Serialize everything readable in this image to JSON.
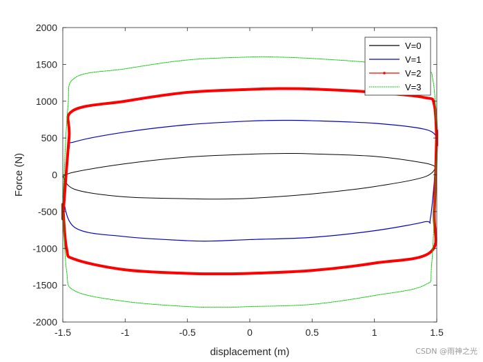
{
  "chart_data": {
    "type": "line",
    "title": "",
    "xlabel": "displacement  (m)",
    "ylabel": "Force  (N)",
    "xlim": [
      -1.5,
      1.5
    ],
    "ylim": [
      -2000,
      2000
    ],
    "xticks": [
      -1.5,
      -1,
      -0.5,
      0,
      0.5,
      1,
      1.5
    ],
    "yticks": [
      -2000,
      -1500,
      -1000,
      -500,
      0,
      500,
      1000,
      1500,
      2000
    ],
    "xtick_labels": [
      "-1.5",
      "-1",
      "-0.5",
      "0",
      "0.5",
      "1",
      "1.5"
    ],
    "ytick_labels": [
      "-2000",
      "-1500",
      "-1000",
      "-500",
      "0",
      "500",
      "1000",
      "1500",
      "2000"
    ],
    "grid": false,
    "legend_position": "top-right",
    "series": [
      {
        "name": "V=0",
        "color": "#000000",
        "upper": {
          "x": [
            -1.5,
            -1.4,
            -1.0,
            -0.5,
            0.0,
            0.3,
            0.5,
            1.0,
            1.4,
            1.5
          ],
          "y": [
            -20,
            40,
            150,
            240,
            280,
            290,
            285,
            250,
            160,
            100
          ]
        },
        "lower": {
          "x": [
            1.5,
            1.4,
            1.0,
            0.5,
            0.0,
            -0.3,
            -0.5,
            -1.0,
            -1.4,
            -1.5
          ],
          "y": [
            120,
            -30,
            -160,
            -260,
            -320,
            -330,
            -325,
            -300,
            -200,
            -20
          ]
        }
      },
      {
        "name": "V=1",
        "color": "#0000c0",
        "upper": {
          "x": [
            -1.5,
            -1.45,
            -1.4,
            -1.0,
            -0.5,
            0.0,
            0.3,
            0.5,
            1.0,
            1.4,
            1.5
          ],
          "y": [
            -300,
            350,
            450,
            580,
            680,
            730,
            740,
            735,
            700,
            620,
            520
          ]
        },
        "lower": {
          "x": [
            1.5,
            1.45,
            1.4,
            1.0,
            0.5,
            0.0,
            -0.3,
            -0.5,
            -1.0,
            -1.4,
            -1.5
          ],
          "y": [
            300,
            -580,
            -640,
            -760,
            -850,
            -880,
            -900,
            -895,
            -840,
            -720,
            -300
          ]
        }
      },
      {
        "name": "V=2",
        "color": "#ff0000",
        "upper": {
          "x": [
            -1.5,
            -1.45,
            -1.42,
            -1.0,
            -0.5,
            0.0,
            0.2,
            0.5,
            1.0,
            1.4,
            1.48,
            1.5
          ],
          "y": [
            -600,
            500,
            870,
            1000,
            1120,
            1160,
            1170,
            1165,
            1120,
            1050,
            950,
            400
          ]
        },
        "lower": {
          "x": [
            1.5,
            1.48,
            1.45,
            1.0,
            0.5,
            0.0,
            -0.2,
            -0.5,
            -1.0,
            -1.4,
            -1.47,
            -1.5
          ],
          "y": [
            600,
            -500,
            -1050,
            -1200,
            -1300,
            -1340,
            -1345,
            -1340,
            -1290,
            -1150,
            -1000,
            -400
          ]
        }
      },
      {
        "name": "V=3",
        "color": "#00cc00",
        "dashed": true,
        "upper": {
          "x": [
            -1.5,
            -1.46,
            -1.4,
            -1.0,
            -0.5,
            0.0,
            0.2,
            0.5,
            1.0,
            1.4,
            1.47,
            1.5
          ],
          "y": [
            -400,
            900,
            1320,
            1440,
            1560,
            1600,
            1600,
            1580,
            1520,
            1420,
            1280,
            600
          ]
        },
        "lower": {
          "x": [
            1.5,
            1.46,
            1.4,
            1.0,
            0.5,
            0.0,
            -0.2,
            -0.5,
            -1.0,
            -1.4,
            -1.47,
            -1.5
          ],
          "y": [
            400,
            -1200,
            -1500,
            -1640,
            -1760,
            -1790,
            -1800,
            -1790,
            -1720,
            -1580,
            -1300,
            -400
          ]
        }
      }
    ]
  },
  "watermark": "CSDN @雨神之光"
}
